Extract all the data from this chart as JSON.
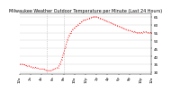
{
  "title": "Milwaukee Weather Outdoor Temperature per Minute (Last 24 Hours)",
  "title_fontsize": 3.5,
  "line_color": "#ff0000",
  "bg_color": "#ffffff",
  "grid_color": "#d0d0d0",
  "ylim": [
    29,
    67
  ],
  "yticks": [
    30,
    35,
    40,
    45,
    50,
    55,
    60,
    65
  ],
  "xlim": [
    0,
    1440
  ],
  "vline1": 300,
  "vline2": 480,
  "time_points": [
    0,
    20,
    40,
    60,
    80,
    100,
    120,
    140,
    160,
    180,
    200,
    220,
    240,
    260,
    280,
    300,
    320,
    340,
    360,
    380,
    400,
    420,
    440,
    460,
    480,
    500,
    520,
    540,
    560,
    580,
    600,
    620,
    640,
    660,
    680,
    700,
    720,
    740,
    760,
    780,
    800,
    820,
    840,
    860,
    880,
    900,
    920,
    940,
    960,
    980,
    1000,
    1020,
    1040,
    1060,
    1080,
    1100,
    1120,
    1140,
    1160,
    1180,
    1200,
    1220,
    1240,
    1260,
    1280,
    1300,
    1320,
    1340,
    1360,
    1380,
    1400,
    1420,
    1440
  ],
  "temp_values": [
    35,
    35,
    35,
    34.5,
    34,
    34,
    33.5,
    33,
    33,
    33,
    32.5,
    32,
    32,
    32,
    31.5,
    31,
    31,
    31,
    31.5,
    32,
    32.5,
    33,
    35,
    38,
    42,
    46,
    50,
    53,
    55,
    57,
    58,
    59,
    60,
    61,
    62,
    63,
    63,
    63.5,
    64,
    64.5,
    65,
    65,
    65,
    64.5,
    64,
    63.5,
    63,
    62.5,
    62,
    61.5,
    61,
    60.5,
    60,
    59.5,
    59,
    58.5,
    58,
    57.5,
    57,
    56.5,
    56.5,
    56,
    55.5,
    55.5,
    55,
    55,
    55,
    55,
    55.5,
    55.5,
    55,
    55,
    55
  ],
  "xtick_positions": [
    0,
    120,
    240,
    360,
    480,
    600,
    720,
    840,
    960,
    1080,
    1200,
    1320,
    1440
  ],
  "xtick_labels": [
    "12a",
    "2a",
    "4a",
    "6a",
    "8a",
    "10a",
    "12p",
    "2p",
    "4p",
    "6p",
    "8p",
    "10p",
    "12a"
  ],
  "line_width": 0.7,
  "marker": ".",
  "marker_size": 0.8,
  "tick_fontsize": 2.8,
  "ytick_fontsize": 3.0
}
